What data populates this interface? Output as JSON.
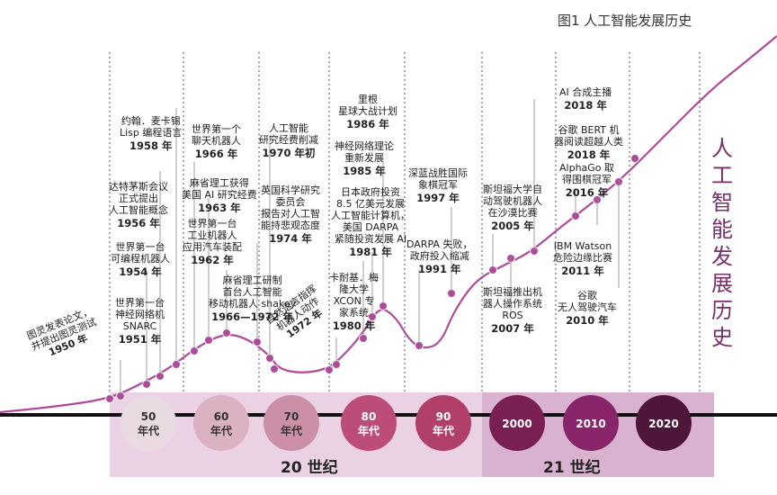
{
  "figure_title": "图1 人工智能发展历史",
  "side_title": "人工智能发展历史",
  "colors": {
    "accent": "#b04a9a",
    "band_light": "#ead2e4",
    "band_dark": "#d9b2cf"
  },
  "eras": [
    {
      "label1": "50",
      "label2": "年代",
      "color": "#e9dae2"
    },
    {
      "label1": "60",
      "label2": "年代",
      "color": "#dbb2c2"
    },
    {
      "label1": "70",
      "label2": "年代",
      "color": "#cc8fa8"
    },
    {
      "label1": "80",
      "label2": "年代",
      "color": "#bc4c7a"
    },
    {
      "label1": "90",
      "label2": "年代",
      "color": "#b0406a"
    },
    {
      "label1": "2000",
      "label2": "",
      "color": "#7a1f52"
    },
    {
      "label1": "2010",
      "label2": "",
      "color": "#88256a"
    },
    {
      "label1": "2020",
      "label2": "",
      "color": "#4e1638"
    }
  ],
  "centuries": {
    "c20": "20 世纪",
    "c21": "21 世纪"
  },
  "events": [
    {
      "text": "图灵发表论文，\n并提出图灵测试",
      "year": "1950 年"
    },
    {
      "text": "世界第一台\n神经网络机\nSNARC",
      "year": "1951 年"
    },
    {
      "text": "世界第一台\n可编程机器人",
      "year": "1954 年"
    },
    {
      "text": "达特茅斯会议\n正式提出\n人工智能概念",
      "year": "1956 年"
    },
    {
      "text": "约翰．麦卡锡\nLisp 编程语言",
      "year": "1958 年"
    },
    {
      "text": "世界第一个\n聊天机器人",
      "year": "1966 年"
    },
    {
      "text": "麻省理工获得\n美国 AI 研究经费",
      "year": "1963 年"
    },
    {
      "text": "世界第一台\n工业机器人\n应用汽车装配",
      "year": "1962 年"
    },
    {
      "text": "麻省理工研制\n首台人工智能\n移动机器人 shakey",
      "year": "1966—1972 年"
    },
    {
      "text": "人工智能\n研究经费削减",
      "year": "1970 年初"
    },
    {
      "text": "英国科学研究\n委员会\n报告对人工智\n能持悲观态度",
      "year": "1974 年"
    },
    {
      "text": "自然语言指挥\n机器人动作",
      "year": "1972 年"
    },
    {
      "text": "卡耐基．梅\n隆大学\nXCON 专\n家系统",
      "year": "1980 年"
    },
    {
      "text": "里根\n星球大战计划",
      "year": "1986 年"
    },
    {
      "text": "神经网络理论\n重新发展",
      "year": "1985 年"
    },
    {
      "text": "日本政府投资\n8.5 亿美元发展\n人工智能计算机，\n美国 DARPA\n紧随投资发展 AI",
      "year": "1981 年"
    },
    {
      "text": "深蓝战胜国际\n象棋冠军",
      "year": "1997 年"
    },
    {
      "text": "DARPA 失败，\n政府投入缩减",
      "year": "1991 年"
    },
    {
      "text": "斯坦福大学自\n动驾驶机器人\n在沙漠比赛",
      "year": "2005 年"
    },
    {
      "text": "斯坦福推出机\n器人操作系统\nROS",
      "year": "2007 年"
    },
    {
      "text": "AI 合成主播",
      "year": "2018 年"
    },
    {
      "text": "谷歌 BERT 机\n器阅读超越人类",
      "year": "2018 年"
    },
    {
      "text": "AlphaGo 取\n得围棋冠军",
      "year": "2016 年"
    },
    {
      "text": "IBM Watson\n危险边缘比赛",
      "year": "2011 年"
    },
    {
      "text": "谷歌\n无人驾驶汽车",
      "year": "2010 年"
    }
  ]
}
